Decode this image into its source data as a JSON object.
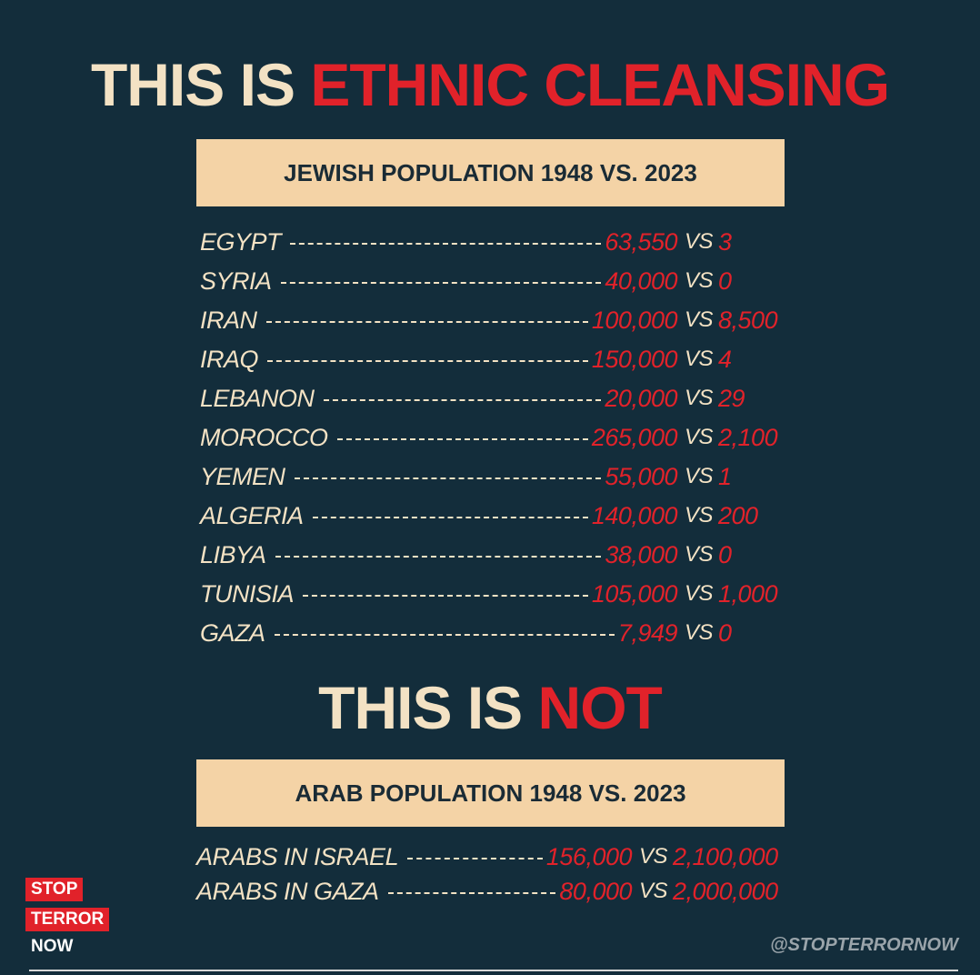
{
  "title": {
    "lead": "THIS IS",
    "highlight": "ETHNIC CLEANSING"
  },
  "separator": "VS",
  "jewish_section": {
    "header": "JEWISH POPULATION 1948 VS. 2023",
    "rows": [
      {
        "place": "EGYPT",
        "before": "63,550",
        "after": "3"
      },
      {
        "place": "SYRIA",
        "before": "40,000",
        "after": "0"
      },
      {
        "place": "IRAN",
        "before": "100,000",
        "after": "8,500"
      },
      {
        "place": "IRAQ",
        "before": "150,000",
        "after": "4"
      },
      {
        "place": "LEBANON",
        "before": "20,000",
        "after": "29"
      },
      {
        "place": "MOROCCO",
        "before": "265,000",
        "after": "2,100"
      },
      {
        "place": "YEMEN",
        "before": "55,000",
        "after": "1"
      },
      {
        "place": "ALGERIA",
        "before": "140,000",
        "after": "200"
      },
      {
        "place": "LIBYA",
        "before": "38,000",
        "after": "0"
      },
      {
        "place": "TUNISIA",
        "before": "105,000",
        "after": "1,000"
      },
      {
        "place": "GAZA",
        "before": "7,949",
        "after": "0"
      }
    ]
  },
  "subtitle": {
    "lead": "THIS IS",
    "highlight": "NOT"
  },
  "arab_section": {
    "header": "ARAB POPULATION 1948 VS. 2023",
    "rows": [
      {
        "place": "ARABS IN ISRAEL",
        "before": "156,000",
        "after": "2,100,000"
      },
      {
        "place": "ARABS IN GAZA",
        "before": "80,000",
        "after": "2,000,000"
      }
    ]
  },
  "logo": {
    "line1": "STOP",
    "line2": "TERROR",
    "line3": "NOW"
  },
  "handle": "@STOPTERRORNOW"
}
